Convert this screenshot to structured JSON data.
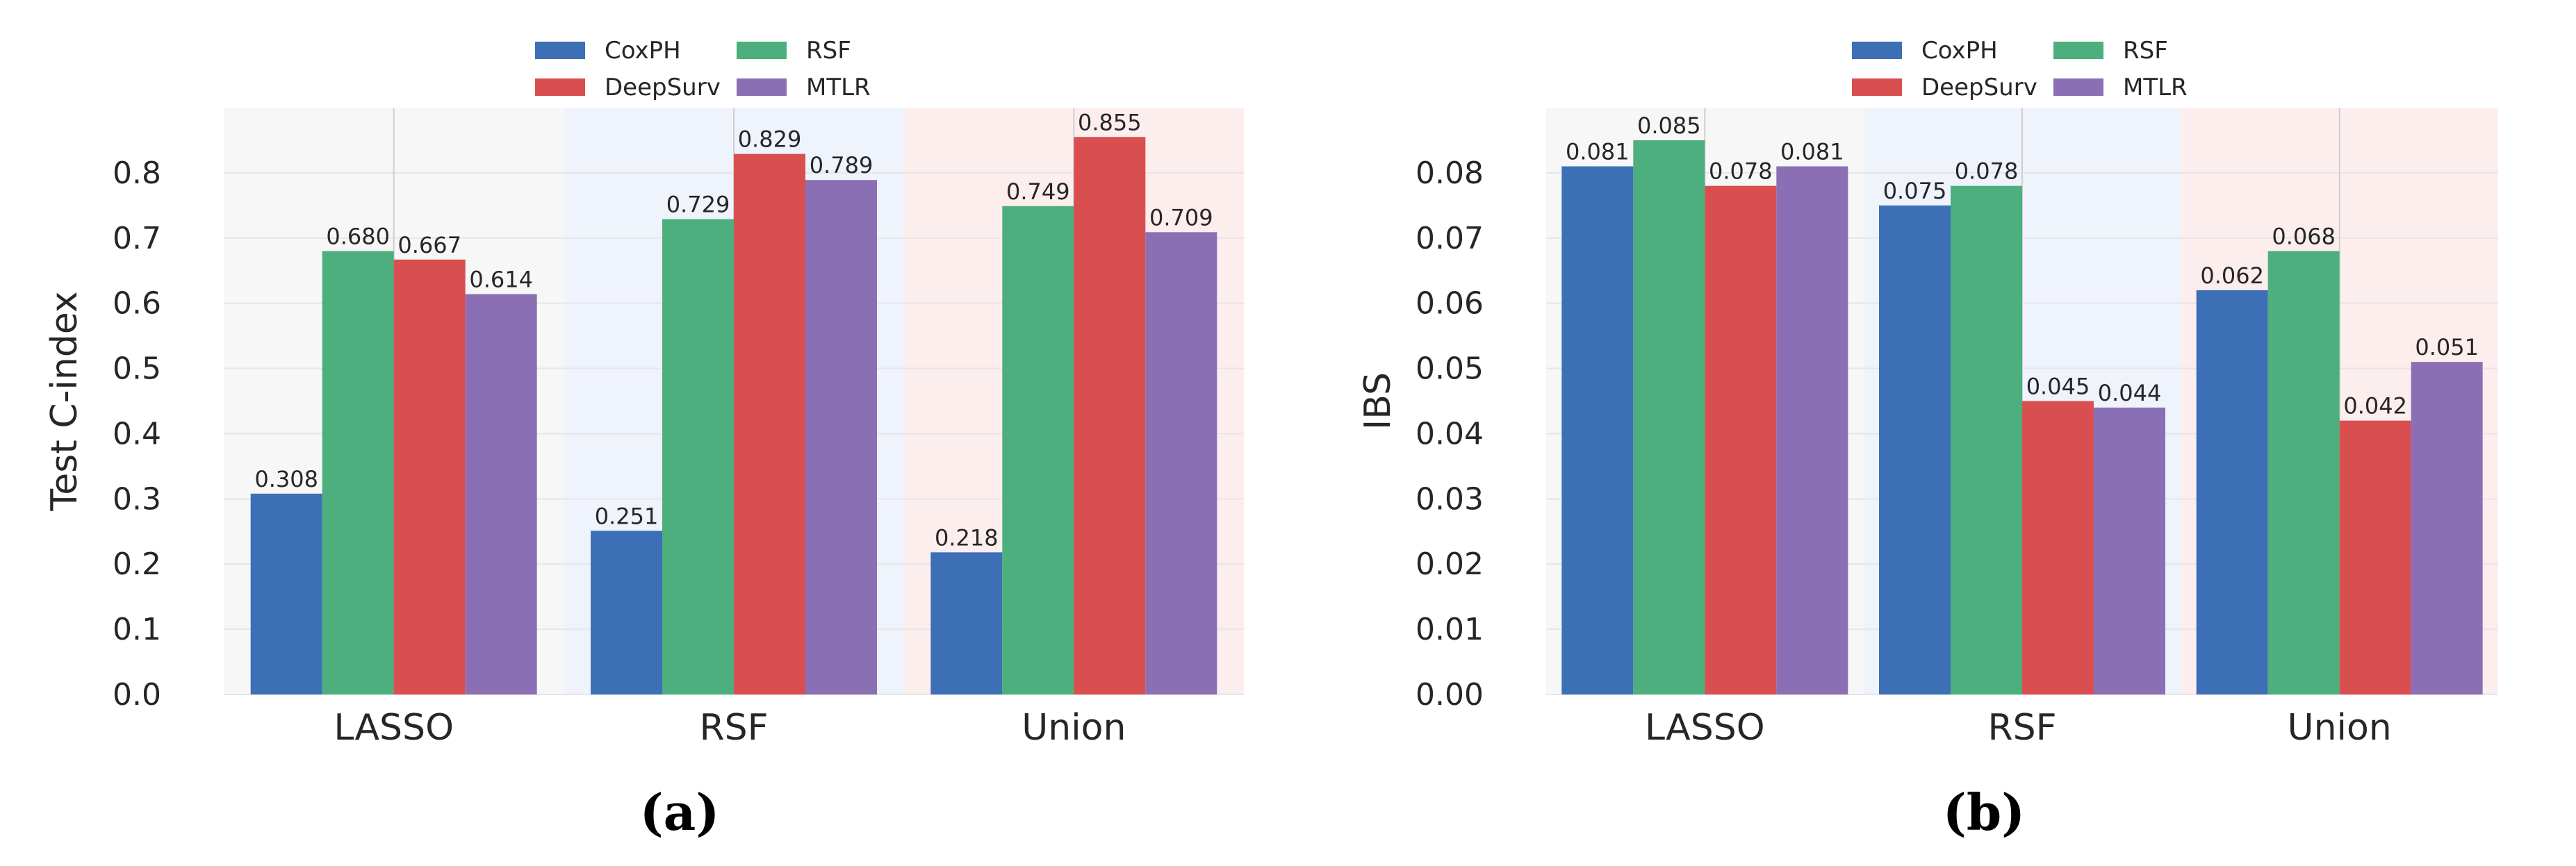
{
  "chart_data": [
    {
      "type": "bar",
      "panel_label": "(a)",
      "categories": [
        "LASSO",
        "RSF",
        "Union"
      ],
      "ylabel": "Test C-index",
      "xlabel": "",
      "ylim": [
        0,
        0.9
      ],
      "yticks": [
        "0.0",
        "0.1",
        "0.2",
        "0.3",
        "0.4",
        "0.5",
        "0.6",
        "0.7",
        "0.8"
      ],
      "grid": true,
      "legend_position": "top",
      "group_backgrounds": [
        "#f7f7f7",
        "#eef3fc",
        "#fdeeee"
      ],
      "series": [
        {
          "name": "CoxPH",
          "color": "#3d6fb6",
          "values": [
            0.308,
            0.251,
            0.218
          ],
          "labels": [
            "0.308",
            "0.251",
            "0.218"
          ]
        },
        {
          "name": "RSF",
          "color": "#4caf7d",
          "values": [
            0.68,
            0.729,
            0.749
          ],
          "labels": [
            "0.680",
            "0.729",
            "0.749"
          ]
        },
        {
          "name": "DeepSurv",
          "color": "#d94f4f",
          "values": [
            0.667,
            0.829,
            0.855
          ],
          "labels": [
            "0.667",
            "0.829",
            "0.855"
          ]
        },
        {
          "name": "MTLR",
          "color": "#8a6fb5",
          "values": [
            0.614,
            0.789,
            0.709
          ],
          "labels": [
            "0.614",
            "0.789",
            "0.709"
          ]
        }
      ]
    },
    {
      "type": "bar",
      "panel_label": "(b)",
      "categories": [
        "LASSO",
        "RSF",
        "Union"
      ],
      "ylabel": "IBS",
      "xlabel": "",
      "ylim": [
        0,
        0.09
      ],
      "yticks": [
        "0.00",
        "0.01",
        "0.02",
        "0.03",
        "0.04",
        "0.05",
        "0.06",
        "0.07",
        "0.08"
      ],
      "grid": true,
      "legend_position": "top",
      "group_backgrounds": [
        "#f7f7f7",
        "#eef3fc",
        "#fdeeee"
      ],
      "series": [
        {
          "name": "CoxPH",
          "color": "#3d6fb6",
          "values": [
            0.081,
            0.075,
            0.062
          ],
          "labels": [
            "0.081",
            "0.075",
            "0.062"
          ]
        },
        {
          "name": "RSF",
          "color": "#4caf7d",
          "values": [
            0.085,
            0.078,
            0.068
          ],
          "labels": [
            "0.085",
            "0.078",
            "0.068"
          ]
        },
        {
          "name": "DeepSurv",
          "color": "#d94f4f",
          "values": [
            0.078,
            0.045,
            0.042
          ],
          "labels": [
            "0.078",
            "0.045",
            "0.042"
          ]
        },
        {
          "name": "MTLR",
          "color": "#8a6fb5",
          "values": [
            0.081,
            0.044,
            0.051
          ],
          "labels": [
            "0.081",
            "0.044",
            "0.051"
          ]
        }
      ]
    }
  ]
}
